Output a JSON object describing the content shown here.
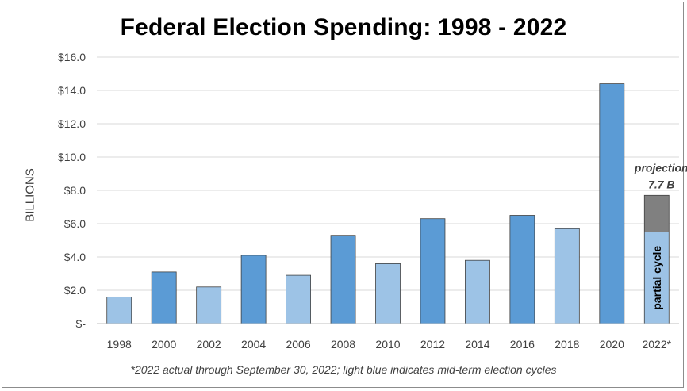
{
  "chart_data": {
    "type": "bar",
    "title": "Federal Election Spending:  1998 - 2022",
    "ylabel": "BILLIONS",
    "xlabel": "",
    "ylim": [
      0,
      16
    ],
    "yticks": [
      0,
      2,
      4,
      6,
      8,
      10,
      12,
      14,
      16
    ],
    "ytick_labels": [
      "$-",
      "$2.0",
      "$4.0",
      "$6.0",
      "$8.0",
      "$10.0",
      "$12.0",
      "$14.0",
      "$16.0"
    ],
    "grid": true,
    "categories": [
      "1998",
      "2000",
      "2002",
      "2004",
      "2006",
      "2008",
      "2010",
      "2012",
      "2014",
      "2016",
      "2018",
      "2020",
      "2022*"
    ],
    "values": [
      1.6,
      3.1,
      2.2,
      4.1,
      2.9,
      5.3,
      3.6,
      6.3,
      3.8,
      6.5,
      5.7,
      14.4,
      5.5
    ],
    "cycle_type": [
      "mid-term",
      "presidential",
      "mid-term",
      "presidential",
      "mid-term",
      "presidential",
      "mid-term",
      "presidential",
      "mid-term",
      "presidential",
      "mid-term",
      "presidential",
      "mid-term"
    ],
    "projection": {
      "category": "2022*",
      "value": 7.7,
      "label_line1": "projection",
      "label_line2": "7.7 B"
    },
    "partial_label": "partial cycle",
    "footnote": "*2022 actual through September 30, 2022; light blue indicates mid-term election cycles",
    "colors": {
      "presidential": "#5b9bd5",
      "mid-term": "#9dc3e6",
      "projection": "#808080",
      "bar_edge": "#404040",
      "grid": "#d9d9d9",
      "text": "#404040"
    }
  }
}
